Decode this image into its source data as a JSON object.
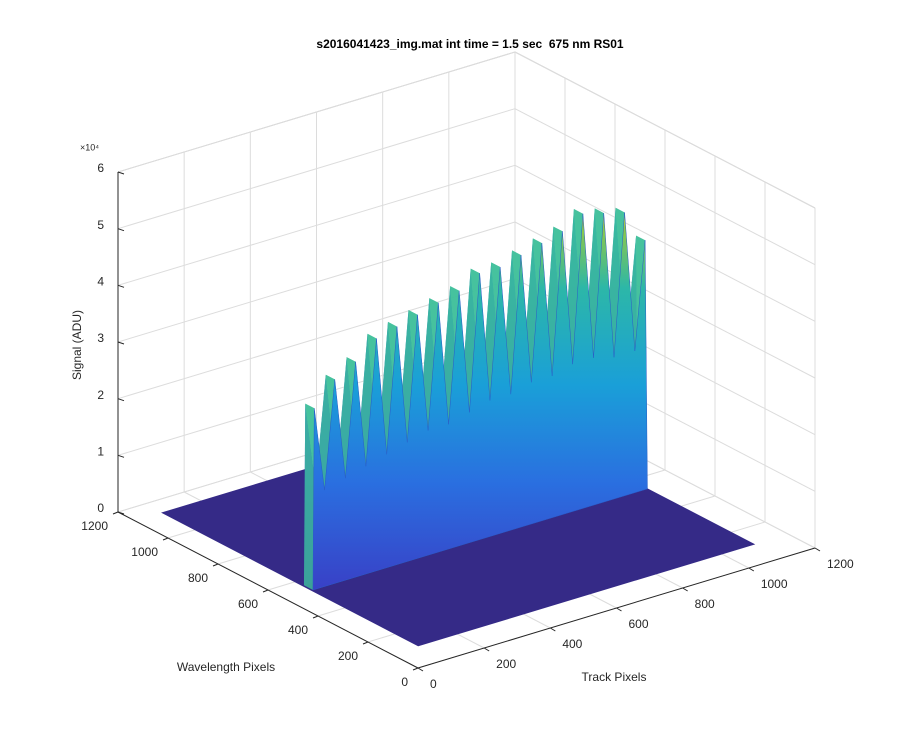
{
  "chart_data": {
    "type": "surface",
    "title": "s2016041423_img.mat int time = 1.5 sec  675 nm RS01",
    "xlabel": "Track Pixels",
    "ylabel": "Wavelength Pixels",
    "zlabel": "Signal (ADU)",
    "z_exponent": "×10⁴",
    "xlim": [
      0,
      1200
    ],
    "xticks": [
      0,
      200,
      400,
      600,
      800,
      1000,
      1200
    ],
    "ylim": [
      0,
      1200
    ],
    "yticks": [
      0,
      200,
      400,
      600,
      800,
      1000,
      1200
    ],
    "zlim": [
      0,
      60000
    ],
    "zticks": [
      0,
      {
        "value": 10000,
        "label": "1"
      },
      {
        "value": 20000,
        "label": "2"
      },
      {
        "value": 30000,
        "label": "3"
      },
      {
        "value": 40000,
        "label": "4"
      },
      {
        "value": 50000,
        "label": "5"
      },
      {
        "value": 60000,
        "label": "6"
      }
    ],
    "grid": true,
    "floor_color": "#352a87",
    "surface": {
      "x": [
        86,
        90,
        121,
        152,
        184,
        215,
        246,
        278,
        309,
        340,
        371,
        402,
        434,
        465,
        496,
        528,
        559,
        590,
        621,
        652,
        684,
        715,
        746,
        778,
        809,
        840,
        871,
        902,
        934,
        965,
        996,
        1028,
        1059,
        1090,
        1097
      ],
      "values": [
        0,
        32000,
        17000,
        36000,
        18000,
        38000,
        19000,
        41000,
        20000,
        42000,
        21000,
        43000,
        22000,
        44000,
        22000,
        45000,
        23000,
        47000,
        24000,
        47000,
        24000,
        48000,
        25000,
        49000,
        25000,
        50000,
        26000,
        52000,
        26000,
        51000,
        25000,
        50000,
        25000,
        44000,
        0
      ],
      "y_range": [
        534,
        570
      ],
      "floor_x_range": [
        82,
        1097
      ],
      "floor_y_range": [
        108,
        1131
      ]
    }
  }
}
